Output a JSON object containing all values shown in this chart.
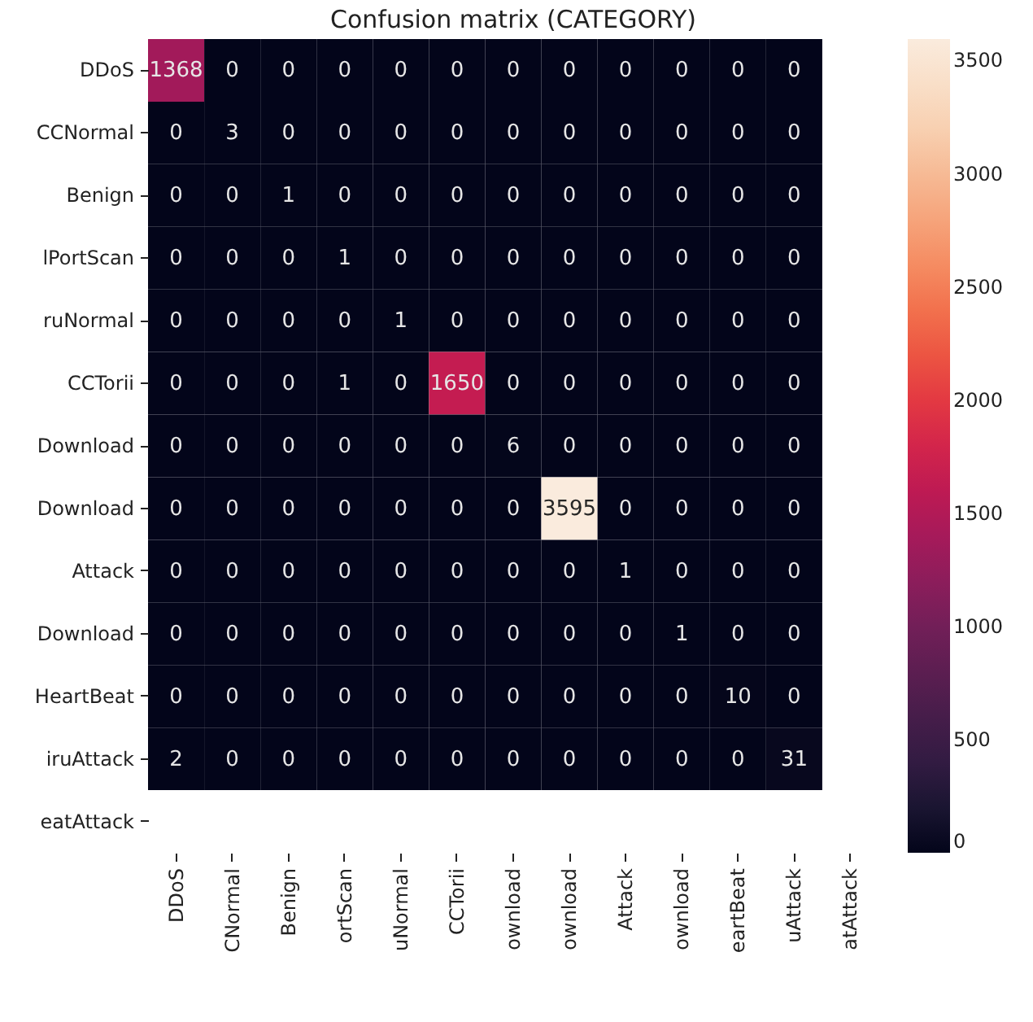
{
  "chart_data": {
    "type": "heatmap",
    "title": "Confusion matrix (CATEGORY)",
    "categories": [
      "DDoS",
      "CNormal",
      "Benign",
      "ortScan",
      "uNormal",
      "CCTorii",
      "ownload",
      "ownload",
      "Attack",
      "ownload",
      "eartBeat",
      "uAttack",
      "atAttack"
    ],
    "y_categories": [
      "DDoS",
      "CCNormal",
      "Benign",
      "lPortScan",
      "ruNormal",
      "CCTorii",
      "Download",
      "Download",
      "Attack",
      "Download",
      "HeartBeat",
      "iruAttack",
      "eatAttack"
    ],
    "cells": [
      [
        1368,
        0,
        0,
        0,
        0,
        0,
        0,
        0,
        0,
        0,
        0,
        0,
        null
      ],
      [
        0,
        3,
        0,
        0,
        0,
        0,
        0,
        0,
        0,
        0,
        0,
        0,
        null
      ],
      [
        0,
        0,
        1,
        0,
        0,
        0,
        0,
        0,
        0,
        0,
        0,
        0,
        null
      ],
      [
        0,
        0,
        0,
        1,
        0,
        0,
        0,
        0,
        0,
        0,
        0,
        0,
        null
      ],
      [
        0,
        0,
        0,
        0,
        1,
        0,
        0,
        0,
        0,
        0,
        0,
        0,
        null
      ],
      [
        0,
        0,
        0,
        1,
        0,
        1650,
        0,
        0,
        0,
        0,
        0,
        0,
        null
      ],
      [
        0,
        0,
        0,
        0,
        0,
        0,
        6,
        0,
        0,
        0,
        0,
        0,
        null
      ],
      [
        0,
        0,
        0,
        0,
        0,
        0,
        0,
        3595,
        0,
        0,
        0,
        0,
        null
      ],
      [
        0,
        0,
        0,
        0,
        0,
        0,
        0,
        0,
        1,
        0,
        0,
        0,
        null
      ],
      [
        0,
        0,
        0,
        0,
        0,
        0,
        0,
        0,
        0,
        1,
        0,
        0,
        null
      ],
      [
        0,
        0,
        0,
        0,
        0,
        0,
        0,
        0,
        0,
        0,
        10,
        0,
        null
      ],
      [
        2,
        0,
        0,
        0,
        0,
        0,
        0,
        0,
        0,
        0,
        0,
        31,
        null
      ],
      [
        null,
        null,
        null,
        null,
        null,
        null,
        null,
        null,
        null,
        null,
        null,
        null,
        null
      ]
    ],
    "data_labels": true,
    "clim": [
      0,
      3595
    ],
    "cticks": [
      0,
      500,
      1000,
      1500,
      2000,
      2500,
      3000,
      3500
    ]
  }
}
